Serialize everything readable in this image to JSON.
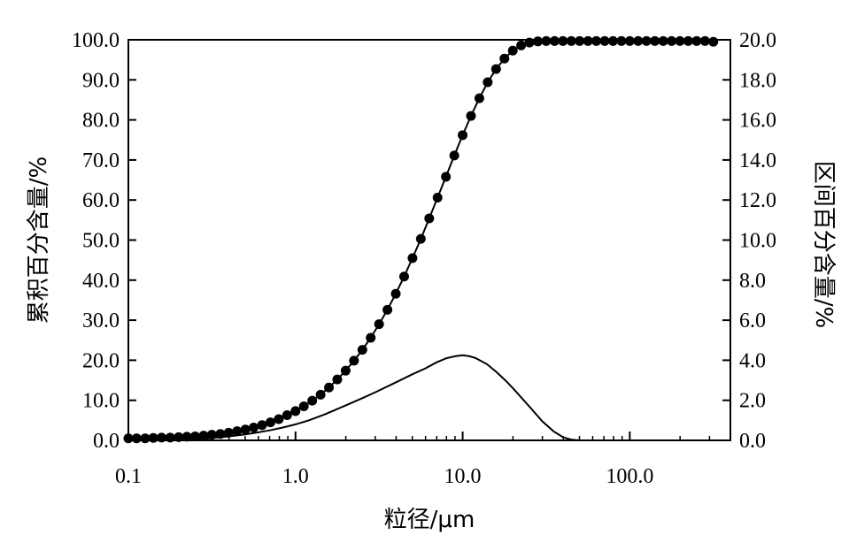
{
  "chart_data": {
    "type": "line",
    "xlabel": "粒径/μm",
    "ylabel": "累积百分含量/%",
    "y2label": "区间百分含量/%",
    "x_scale": "log",
    "xlim": [
      0.1,
      400
    ],
    "ylim": [
      0,
      100
    ],
    "y2lim": [
      0,
      20
    ],
    "x_ticks": [
      {
        "value": 0.1,
        "label": "0.1"
      },
      {
        "value": 1,
        "label": "1.0"
      },
      {
        "value": 10,
        "label": "10.0"
      },
      {
        "value": 100,
        "label": "100.0"
      }
    ],
    "y_ticks": [
      {
        "value": 0,
        "label": "0.0"
      },
      {
        "value": 10,
        "label": "10.0"
      },
      {
        "value": 20,
        "label": "20.0"
      },
      {
        "value": 30,
        "label": "30.0"
      },
      {
        "value": 40,
        "label": "40.0"
      },
      {
        "value": 50,
        "label": "50.0"
      },
      {
        "value": 60,
        "label": "60.0"
      },
      {
        "value": 70,
        "label": "70.0"
      },
      {
        "value": 80,
        "label": "80.0"
      },
      {
        "value": 90,
        "label": "90.0"
      },
      {
        "value": 100,
        "label": "100.0"
      }
    ],
    "y2_ticks": [
      {
        "value": 0,
        "label": "0.0"
      },
      {
        "value": 2,
        "label": "2.0"
      },
      {
        "value": 4,
        "label": "4.0"
      },
      {
        "value": 6,
        "label": "6.0"
      },
      {
        "value": 8,
        "label": "8.0"
      },
      {
        "value": 10,
        "label": "10.0"
      },
      {
        "value": 12,
        "label": "12.0"
      },
      {
        "value": 14,
        "label": "14.0"
      },
      {
        "value": 16,
        "label": "16.0"
      },
      {
        "value": 18,
        "label": "18.0"
      },
      {
        "value": 20,
        "label": "20.0"
      }
    ],
    "grid": false,
    "series": [
      {
        "axis": "left",
        "style": "line-with-markers",
        "color": "#000000",
        "x": [
          0.1,
          0.112,
          0.126,
          0.141,
          0.158,
          0.178,
          0.2,
          0.224,
          0.251,
          0.282,
          0.316,
          0.355,
          0.398,
          0.447,
          0.501,
          0.562,
          0.631,
          0.708,
          0.794,
          0.891,
          1.0,
          1.122,
          1.259,
          1.413,
          1.585,
          1.778,
          1.995,
          2.239,
          2.512,
          2.818,
          3.162,
          3.548,
          3.981,
          4.467,
          5.012,
          5.623,
          6.31,
          7.079,
          7.943,
          8.913,
          10.0,
          11.22,
          12.589,
          14.125,
          15.849,
          17.783,
          19.953,
          22.387,
          25.119,
          28.184,
          31.623,
          35.481,
          39.811,
          44.668,
          50.119,
          56.234,
          63.096,
          70.795,
          79.433,
          89.125,
          100.0,
          112.202,
          125.893,
          141.254,
          158.489,
          177.828,
          199.526,
          223.872,
          251.189,
          281.838,
          316.228
        ],
        "y": [
          0.5,
          0.5,
          0.5,
          0.6,
          0.7,
          0.7,
          0.8,
          0.9,
          1.0,
          1.2,
          1.4,
          1.6,
          1.9,
          2.3,
          2.7,
          3.2,
          3.8,
          4.5,
          5.3,
          6.3,
          7.3,
          8.5,
          9.9,
          11.4,
          13.2,
          15.2,
          17.4,
          19.9,
          22.6,
          25.6,
          29.0,
          32.6,
          36.6,
          40.9,
          45.5,
          50.3,
          55.4,
          60.6,
          65.8,
          71.1,
          76.2,
          81.0,
          85.4,
          89.4,
          92.7,
          95.3,
          97.3,
          98.6,
          99.3,
          99.6,
          99.7,
          99.7,
          99.7,
          99.7,
          99.7,
          99.7,
          99.7,
          99.7,
          99.7,
          99.7,
          99.7,
          99.7,
          99.7,
          99.7,
          99.7,
          99.7,
          99.7,
          99.7,
          99.7,
          99.7,
          99.5
        ]
      },
      {
        "axis": "right",
        "style": "line",
        "color": "#000000",
        "x": [
          0.1,
          0.2,
          0.3,
          0.4,
          0.5,
          0.6,
          0.7,
          0.8,
          0.9,
          1.0,
          1.2,
          1.5,
          2.0,
          2.5,
          3.0,
          4.0,
          5.0,
          6.0,
          7.0,
          8.0,
          9.0,
          10.0,
          11.0,
          12.0,
          14.0,
          16.0,
          18.0,
          20.0,
          25.0,
          30.0,
          35.0,
          40.0,
          45.0,
          50.0,
          55.0,
          60.0,
          80.0,
          100.0,
          150.0,
          200.0,
          300.0,
          320.0
        ],
        "y": [
          0.0,
          0.0,
          0.1,
          0.2,
          0.3,
          0.4,
          0.5,
          0.6,
          0.7,
          0.8,
          1.0,
          1.3,
          1.75,
          2.1,
          2.4,
          2.9,
          3.3,
          3.6,
          3.9,
          4.1,
          4.2,
          4.25,
          4.2,
          4.1,
          3.8,
          3.4,
          3.0,
          2.6,
          1.7,
          0.95,
          0.45,
          0.15,
          0.03,
          0.0,
          0.0,
          0.0,
          0.0,
          0.0,
          0.0,
          0.0,
          0.0,
          0.0
        ]
      }
    ]
  }
}
